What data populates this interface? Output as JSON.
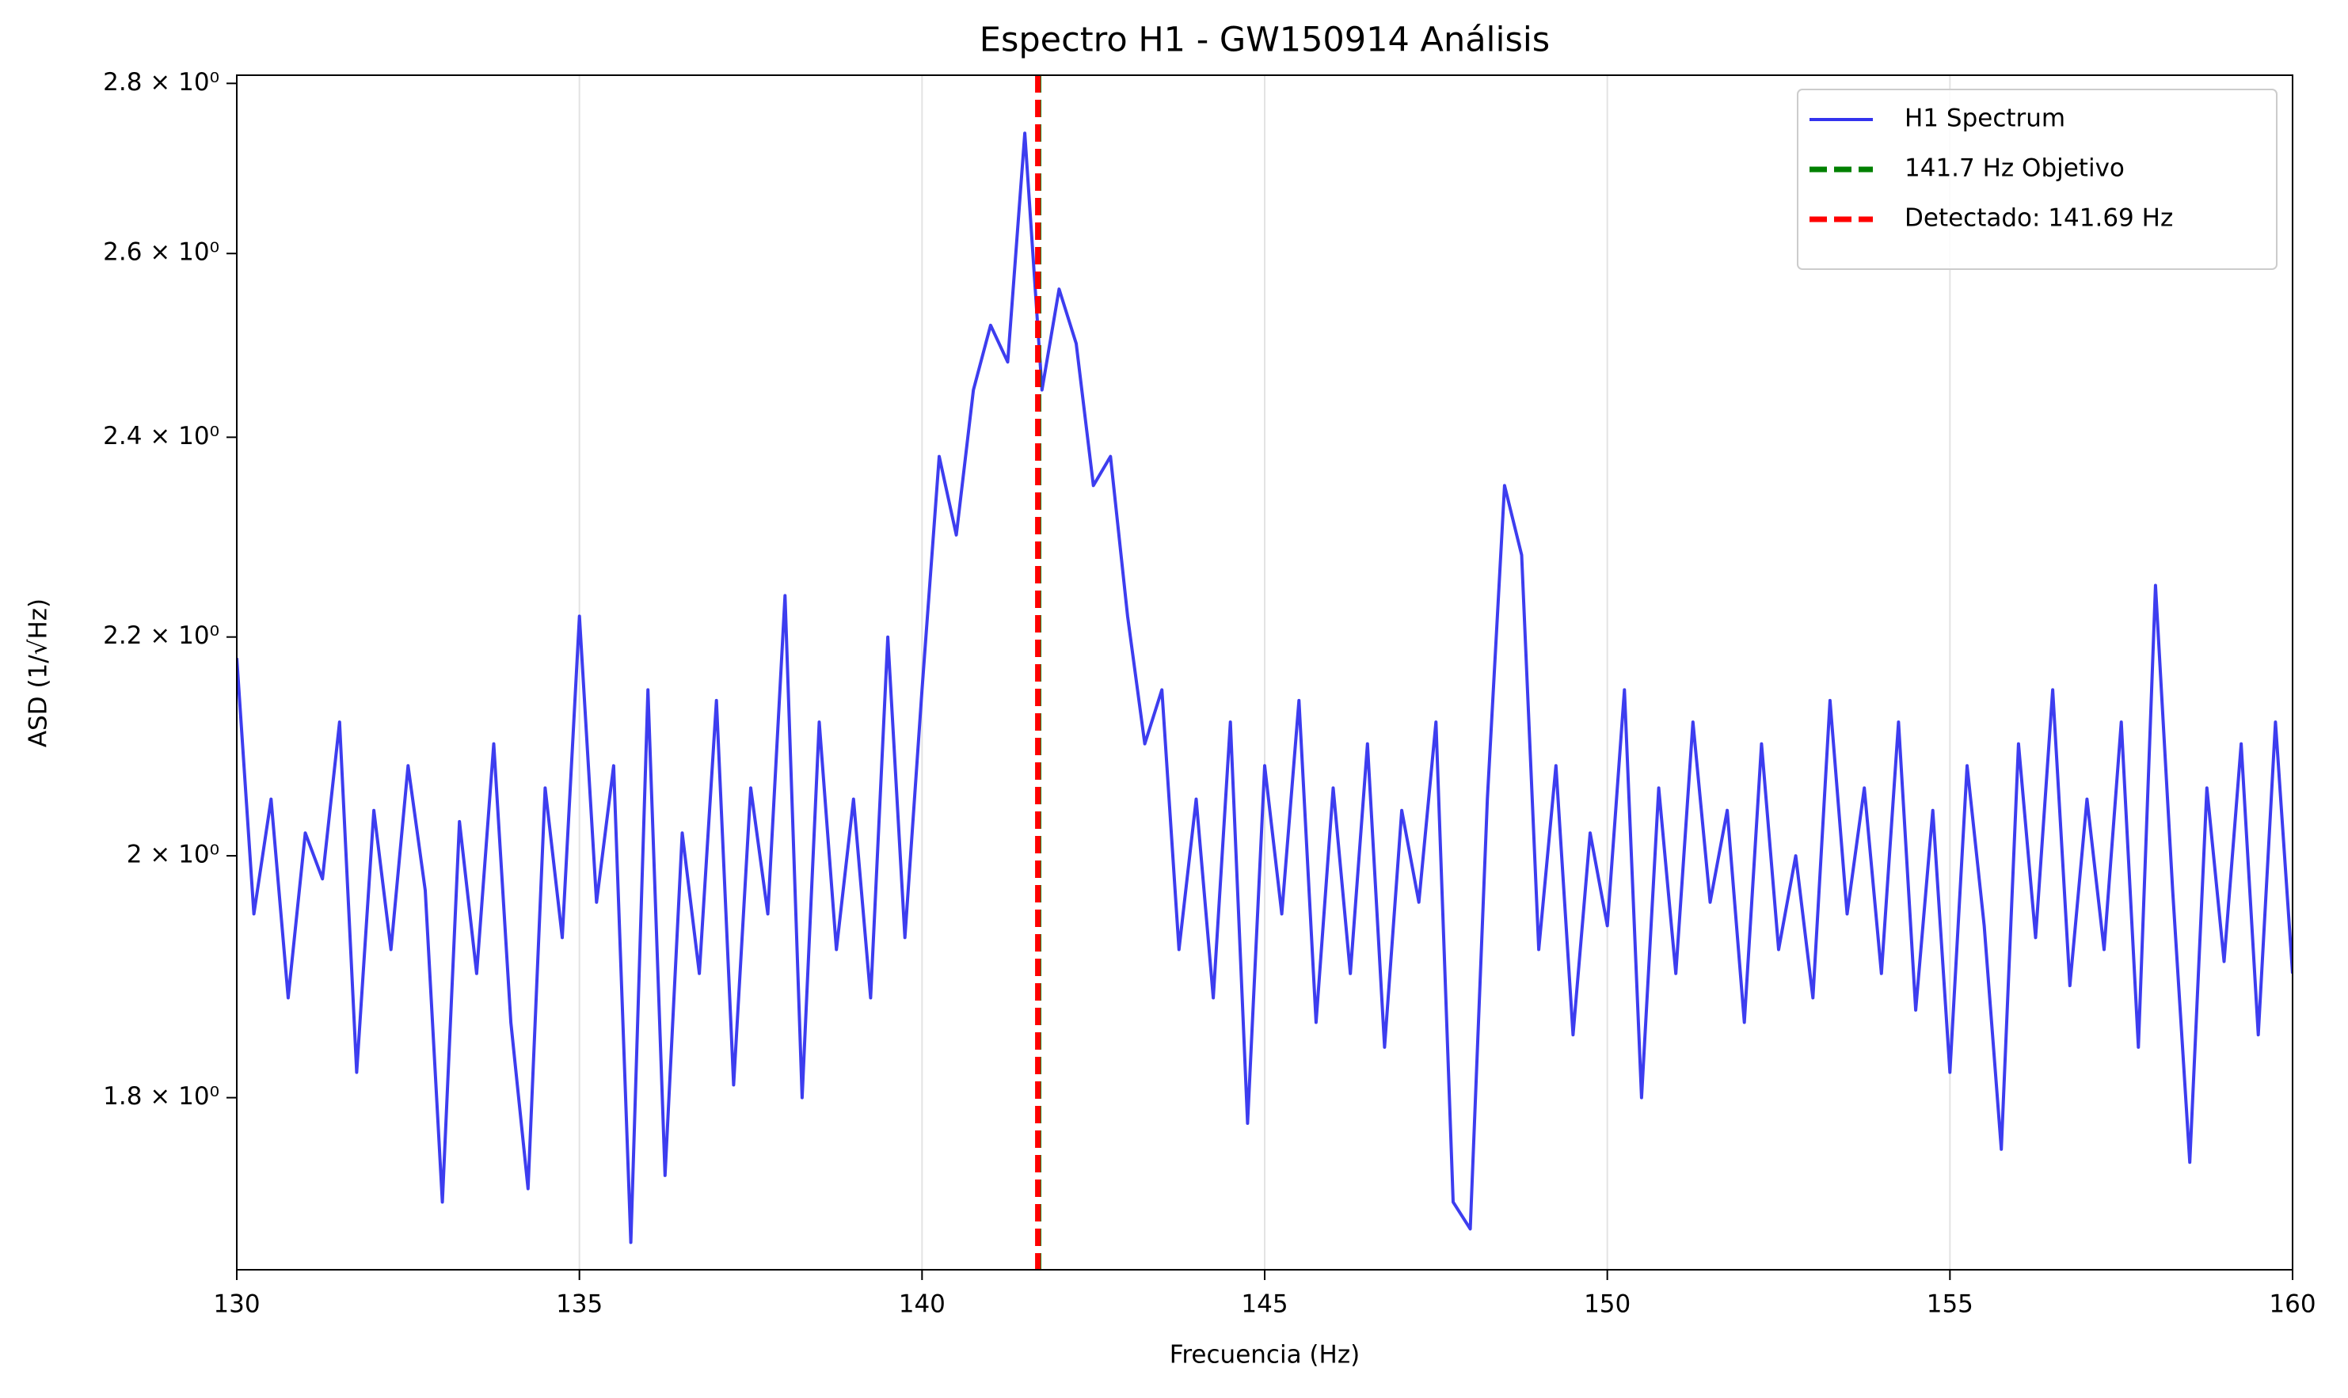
{
  "chart_data": {
    "type": "line",
    "title": "Espectro H1 - GW150914 Análisis",
    "xlabel": "Frecuencia (Hz)",
    "ylabel": "ASD (1/√Hz)",
    "yscale": "log",
    "grid": "x",
    "legend": "upper right",
    "xlim": [
      130,
      160
    ],
    "xticks": [
      130,
      135,
      140,
      145,
      150,
      155,
      160
    ],
    "ylim": [
      1.67,
      2.81
    ],
    "yticks": [
      {
        "value": 1.8,
        "label": "1.8 × 10⁰"
      },
      {
        "value": 2,
        "label": "2 × 10⁰"
      },
      {
        "value": 2.2,
        "label": "2.2 × 10⁰"
      },
      {
        "value": 2.4,
        "label": "2.4 × 10⁰"
      },
      {
        "value": 2.6,
        "label": "2.6 × 10⁰"
      },
      {
        "value": 2.8,
        "label": "2.8 × 10⁰"
      }
    ],
    "x": [
      130,
      130.25,
      130.5,
      130.75,
      131,
      131.25,
      131.5,
      131.75,
      132,
      132.25,
      132.5,
      132.75,
      133,
      133.25,
      133.5,
      133.75,
      134,
      134.25,
      134.5,
      134.75,
      135,
      135.25,
      135.5,
      135.75,
      136,
      136.25,
      136.5,
      136.75,
      137,
      137.25,
      137.5,
      137.75,
      138,
      138.25,
      138.5,
      138.75,
      139,
      139.25,
      139.5,
      139.75,
      140,
      140.25,
      140.5,
      140.75,
      141,
      141.25,
      141.5,
      141.75,
      142,
      142.25,
      142.5,
      142.75,
      143,
      143.25,
      143.5,
      143.75,
      144,
      144.25,
      144.5,
      144.75,
      145,
      145.25,
      145.5,
      145.75,
      146,
      146.25,
      146.5,
      146.75,
      147,
      147.25,
      147.5,
      147.75,
      148,
      148.25,
      148.5,
      148.75,
      149,
      149.25,
      149.5,
      149.75,
      150,
      150.25,
      150.5,
      150.75,
      151,
      151.25,
      151.5,
      151.75,
      152,
      152.25,
      152.5,
      152.75,
      153,
      153.25,
      153.5,
      153.75,
      154,
      154.25,
      154.5,
      154.75,
      155,
      155.25,
      155.5,
      155.75,
      156,
      156.25,
      156.5,
      156.75,
      157,
      157.25,
      157.5,
      157.75,
      158,
      158.25,
      158.5,
      158.75,
      159,
      159.25,
      159.5,
      159.75,
      160
    ],
    "series": [
      {
        "name": "H1 Spectrum",
        "color": "#3333ee",
        "values": [
          2.18,
          1.95,
          2.05,
          1.88,
          2.02,
          1.98,
          2.12,
          1.82,
          2.04,
          1.92,
          2.08,
          1.97,
          1.72,
          2.03,
          1.9,
          2.1,
          1.86,
          1.73,
          2.06,
          1.93,
          2.22,
          1.96,
          2.08,
          1.69,
          2.15,
          1.74,
          2.02,
          1.9,
          2.14,
          1.81,
          2.06,
          1.95,
          2.24,
          1.8,
          2.12,
          1.92,
          2.05,
          1.88,
          2.2,
          1.93,
          2.15,
          2.38,
          2.3,
          2.45,
          2.52,
          2.48,
          2.74,
          2.45,
          2.56,
          2.5,
          2.35,
          2.38,
          2.22,
          2.1,
          2.15,
          1.92,
          2.05,
          1.88,
          2.12,
          1.78,
          2.08,
          1.95,
          2.14,
          1.86,
          2.06,
          1.9,
          2.1,
          1.84,
          2.04,
          1.96,
          2.12,
          1.72,
          1.7,
          2.05,
          2.35,
          2.28,
          1.92,
          2.08,
          1.85,
          2.02,
          1.94,
          2.15,
          1.8,
          2.06,
          1.9,
          2.12,
          1.96,
          2.04,
          1.86,
          2.1,
          1.92,
          2.0,
          1.88,
          2.14,
          1.95,
          2.06,
          1.9,
          2.12,
          1.87,
          2.04,
          1.82,
          2.08,
          1.94,
          1.76,
          2.1,
          1.93,
          2.15,
          1.89,
          2.05,
          1.92,
          2.12,
          1.84,
          2.25,
          1.97,
          1.75,
          2.06,
          1.91,
          2.1,
          1.85,
          2.12,
          1.9
        ]
      }
    ],
    "vlines": [
      {
        "name": "141.7 Hz Objetivo",
        "color": "#008000",
        "x": 141.7
      },
      {
        "name": "Detectado: 141.69 Hz",
        "color": "#ff0000",
        "x": 141.69
      }
    ]
  }
}
